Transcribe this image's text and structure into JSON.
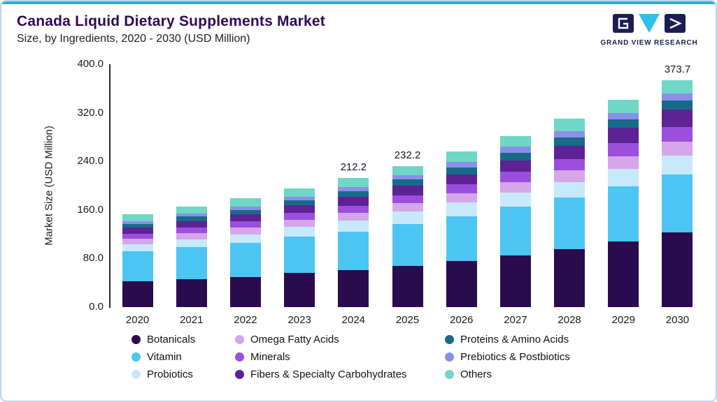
{
  "header": {
    "title": "Canada Liquid Dietary Supplements Market",
    "subtitle": "Size, by Ingredients, 2020 - 2030 (USD Million)",
    "logo_text": "GRAND VIEW RESEARCH"
  },
  "brand_colors": {
    "navy": "#1c1d4f",
    "cyan": "#2fc1ea",
    "accent_bar": "#36a9dc",
    "frame_border": "#b7d8ec",
    "title": "#2c0a54"
  },
  "chart_data": {
    "type": "bar",
    "stacked": true,
    "title": "Canada Liquid Dietary Supplements Market Size, by Ingredients, 2020 - 2030 (USD Million)",
    "xlabel": "",
    "ylabel": "Market Size (USD Million)",
    "ylim": [
      0,
      400
    ],
    "yticks": [
      0,
      80,
      160,
      240,
      320,
      400
    ],
    "ytick_labels": [
      "0.0",
      "80.0",
      "160.0",
      "240.0",
      "320.0",
      "400.0"
    ],
    "categories": [
      "2020",
      "2021",
      "2022",
      "2023",
      "2024",
      "2025",
      "2026",
      "2027",
      "2028",
      "2029",
      "2030"
    ],
    "bar_labels": {
      "2024": "212.2",
      "2025": "232.2",
      "2030": "373.7"
    },
    "totals": [
      153,
      166,
      179,
      196,
      212.2,
      232.2,
      256,
      282,
      310,
      341,
      373.7
    ],
    "grid": false,
    "legend_position": "bottom",
    "series": [
      {
        "name": "Botanicals",
        "color": "#2a0c4e",
        "values": [
          42,
          46,
          50,
          56,
          61,
          68,
          76,
          85,
          95,
          108,
          123
        ]
      },
      {
        "name": "Vitamin",
        "color": "#4cc5f2",
        "values": [
          50,
          53,
          56,
          60,
          63,
          69,
          74,
          80,
          85,
          91,
          95
        ]
      },
      {
        "name": "Probiotics",
        "color": "#c8e9fb",
        "values": [
          12,
          13,
          14,
          16,
          18,
          20,
          22,
          24,
          26,
          29,
          32
        ]
      },
      {
        "name": "Omega Fatty Acids",
        "color": "#d5a6ea",
        "values": [
          9,
          10,
          11,
          12,
          13,
          14,
          15,
          17,
          19,
          20,
          22
        ]
      },
      {
        "name": "Minerals",
        "color": "#9c4ede",
        "values": [
          8,
          9,
          10,
          11,
          12,
          13,
          15,
          17,
          19,
          22,
          25
        ]
      },
      {
        "name": "Fibers & Specialty Carbohydrates",
        "color": "#5d2293",
        "values": [
          10,
          11,
          12,
          13,
          15,
          16,
          17,
          19,
          22,
          25,
          28
        ]
      },
      {
        "name": "Proteins & Amino Acids",
        "color": "#176b88",
        "values": [
          6,
          7,
          7,
          8,
          9,
          10,
          11,
          12,
          13,
          14,
          15
        ]
      },
      {
        "name": "Prebiotics & Postbiotics",
        "color": "#8b8fea",
        "values": [
          5,
          5,
          6,
          6,
          7,
          7.2,
          9,
          10,
          11,
          11,
          12
        ]
      },
      {
        "name": "Others",
        "color": "#6ed7c5",
        "values": [
          11,
          12,
          13,
          14,
          14.2,
          15,
          17,
          18,
          20,
          21,
          21.7
        ]
      }
    ]
  }
}
